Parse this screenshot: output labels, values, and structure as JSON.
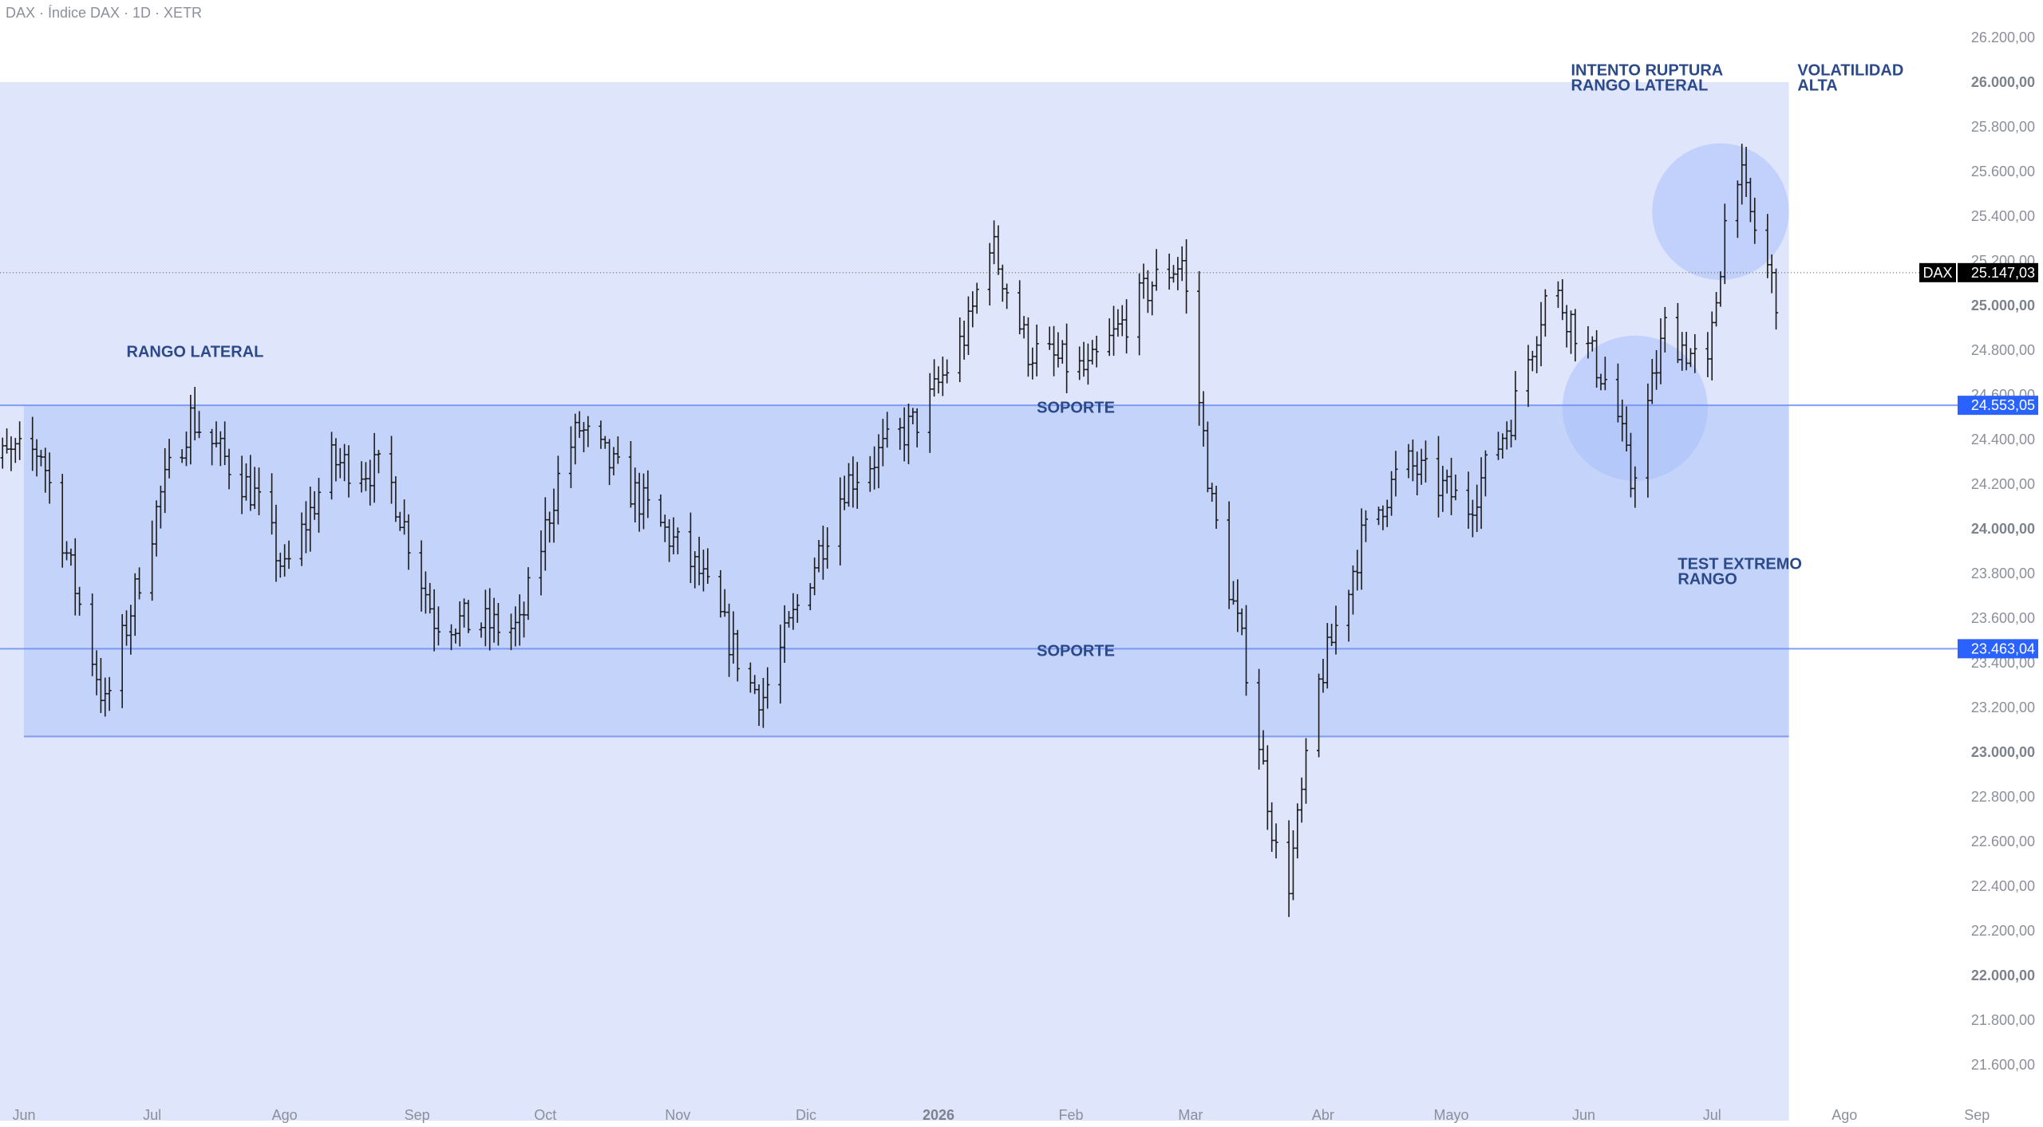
{
  "header": {
    "title": "DAX · Índice DAX · 1D · XETR"
  },
  "colors": {
    "accent": "#2962ff",
    "zone_fill": "#dfe6fc",
    "range_fill": "#c4d3fa",
    "circle_fill": "#a9c0fa",
    "bars": "#1b1b1b"
  },
  "chart_data": {
    "type": "ohlc",
    "symbol": "DAX",
    "timeframe": "1D",
    "ylim": [
      21500,
      26300
    ],
    "y_ticks": [
      {
        "value": 21600,
        "label": "21.600,00",
        "major": false
      },
      {
        "value": 21800,
        "label": "21.800,00",
        "major": false
      },
      {
        "value": 22000,
        "label": "22.000,00",
        "major": true
      },
      {
        "value": 22200,
        "label": "22.200,00",
        "major": false
      },
      {
        "value": 22400,
        "label": "22.400,00",
        "major": false
      },
      {
        "value": 22600,
        "label": "22.600,00",
        "major": false
      },
      {
        "value": 22800,
        "label": "22.800,00",
        "major": false
      },
      {
        "value": 23000,
        "label": "23.000,00",
        "major": true
      },
      {
        "value": 23200,
        "label": "23.200,00",
        "major": false
      },
      {
        "value": 23400,
        "label": "23.400,00",
        "major": false
      },
      {
        "value": 23600,
        "label": "23.600,00",
        "major": false
      },
      {
        "value": 23800,
        "label": "23.800,00",
        "major": false
      },
      {
        "value": 24000,
        "label": "24.000,00",
        "major": true
      },
      {
        "value": 24200,
        "label": "24.200,00",
        "major": false
      },
      {
        "value": 24400,
        "label": "24.400,00",
        "major": false
      },
      {
        "value": 24600,
        "label": "24.600,00",
        "major": false
      },
      {
        "value": 24800,
        "label": "24.800,00",
        "major": false
      },
      {
        "value": 25000,
        "label": "25.000,00",
        "major": true
      },
      {
        "value": 25200,
        "label": "25.200,00",
        "major": false
      },
      {
        "value": 25400,
        "label": "25.400,00",
        "major": false
      },
      {
        "value": 25600,
        "label": "25.600,00",
        "major": false
      },
      {
        "value": 25800,
        "label": "25.800,00",
        "major": false
      },
      {
        "value": 26000,
        "label": "26.000,00",
        "major": true
      },
      {
        "value": 26200,
        "label": "26.200,00",
        "major": false
      }
    ],
    "x_labels": [
      {
        "label": "Jun",
        "date": "2025-06-01",
        "major": false
      },
      {
        "label": "Jul",
        "date": "2025-07-01",
        "major": false
      },
      {
        "label": "Ago",
        "date": "2025-08-01",
        "major": false
      },
      {
        "label": "Sep",
        "date": "2025-09-01",
        "major": false
      },
      {
        "label": "Oct",
        "date": "2025-10-01",
        "major": false
      },
      {
        "label": "Nov",
        "date": "2025-11-01",
        "major": false
      },
      {
        "label": "Dic",
        "date": "2025-12-01",
        "major": false
      },
      {
        "label": "2026",
        "date": "2026-01-01",
        "major": true
      },
      {
        "label": "Feb",
        "date": "2026-02-01",
        "major": false
      },
      {
        "label": "Mar",
        "date": "2026-03-01",
        "major": false
      },
      {
        "label": "Abr",
        "date": "2026-04-01",
        "major": false
      },
      {
        "label": "Mayo",
        "date": "2026-05-01",
        "major": false
      },
      {
        "label": "Jun",
        "date": "2026-06-01",
        "major": false
      },
      {
        "label": "Jul",
        "date": "2026-07-01",
        "major": false
      },
      {
        "label": "Ago",
        "date": "2026-08-01",
        "major": false
      },
      {
        "label": "Sep",
        "date": "2026-09-01",
        "major": false
      }
    ],
    "price_path": [
      [
        "2025-05-22",
        24300
      ],
      [
        "2025-06-05",
        24350
      ],
      [
        "2025-06-20",
        23200
      ],
      [
        "2025-07-03",
        24150
      ],
      [
        "2025-07-10",
        24500
      ],
      [
        "2025-07-25",
        24150
      ],
      [
        "2025-08-01",
        23800
      ],
      [
        "2025-08-12",
        24300
      ],
      [
        "2025-08-25",
        24250
      ],
      [
        "2025-09-05",
        23600
      ],
      [
        "2025-09-25",
        23550
      ],
      [
        "2025-10-05",
        24300
      ],
      [
        "2025-10-09",
        24450
      ],
      [
        "2025-10-20",
        24200
      ],
      [
        "2025-11-06",
        23800
      ],
      [
        "2025-11-18",
        23300
      ],
      [
        "2025-11-21",
        23250
      ],
      [
        "2025-12-10",
        24200
      ],
      [
        "2025-12-28",
        24500
      ],
      [
        "2026-01-08",
        24900
      ],
      [
        "2026-01-13",
        25300
      ],
      [
        "2026-01-22",
        24800
      ],
      [
        "2026-02-05",
        24700
      ],
      [
        "2026-02-20",
        25100
      ],
      [
        "2026-02-27",
        25200
      ],
      [
        "2026-03-06",
        24100
      ],
      [
        "2026-03-15",
        23300
      ],
      [
        "2026-03-23",
        22300
      ],
      [
        "2026-03-31",
        23300
      ],
      [
        "2026-04-10",
        23950
      ],
      [
        "2026-04-20",
        24300
      ],
      [
        "2026-05-05",
        24100
      ],
      [
        "2026-05-15",
        24500
      ],
      [
        "2026-05-24",
        25100
      ],
      [
        "2026-06-08",
        24600
      ],
      [
        "2026-06-12",
        24200
      ],
      [
        "2026-06-20",
        24900
      ],
      [
        "2026-06-30",
        24700
      ],
      [
        "2026-07-06",
        25700
      ],
      [
        "2026-07-10",
        25400
      ],
      [
        "2026-07-16",
        25050
      ]
    ],
    "last_price": {
      "value": 25147.03,
      "label": "25.147,03",
      "tag": "DAX"
    },
    "levels": [
      {
        "name": "SOPORTE",
        "value": 24553.05,
        "label": "24.553,05"
      },
      {
        "name": "SOPORTE",
        "value": 23463.04,
        "label": "23.463,04"
      }
    ],
    "zones": {
      "outer": {
        "from": "2025-05-22",
        "to": "2026-07-19",
        "top": 26000,
        "bottom": 21350
      },
      "range": {
        "from": "2025-06-01",
        "to": "2026-07-19",
        "top": 24553.05,
        "bottom": 23070
      },
      "circles": [
        {
          "center": [
            "2026-06-13",
            24540
          ],
          "radius_days": 17
        },
        {
          "center": [
            "2026-07-03",
            25420
          ],
          "radius_days": 16
        }
      ]
    },
    "annotations": [
      {
        "text": [
          "RANGO LATERAL"
        ],
        "anchor": [
          "2025-06-25",
          24770
        ]
      },
      {
        "text": [
          "SOPORTE"
        ],
        "anchor": [
          "2026-01-24",
          24520
        ]
      },
      {
        "text": [
          "SOPORTE"
        ],
        "anchor": [
          "2026-01-24",
          23430
        ]
      },
      {
        "text": [
          "INTENTO RUPTURA",
          "RANGO LATERAL"
        ],
        "anchor": [
          "2026-05-29",
          26030
        ]
      },
      {
        "text": [
          "VOLATILIDAD",
          "ALTA"
        ],
        "anchor": [
          "2026-07-21",
          26030
        ]
      },
      {
        "text": [
          "TEST EXTREMO",
          "RANGO"
        ],
        "anchor": [
          "2026-06-23",
          23820
        ]
      }
    ]
  }
}
